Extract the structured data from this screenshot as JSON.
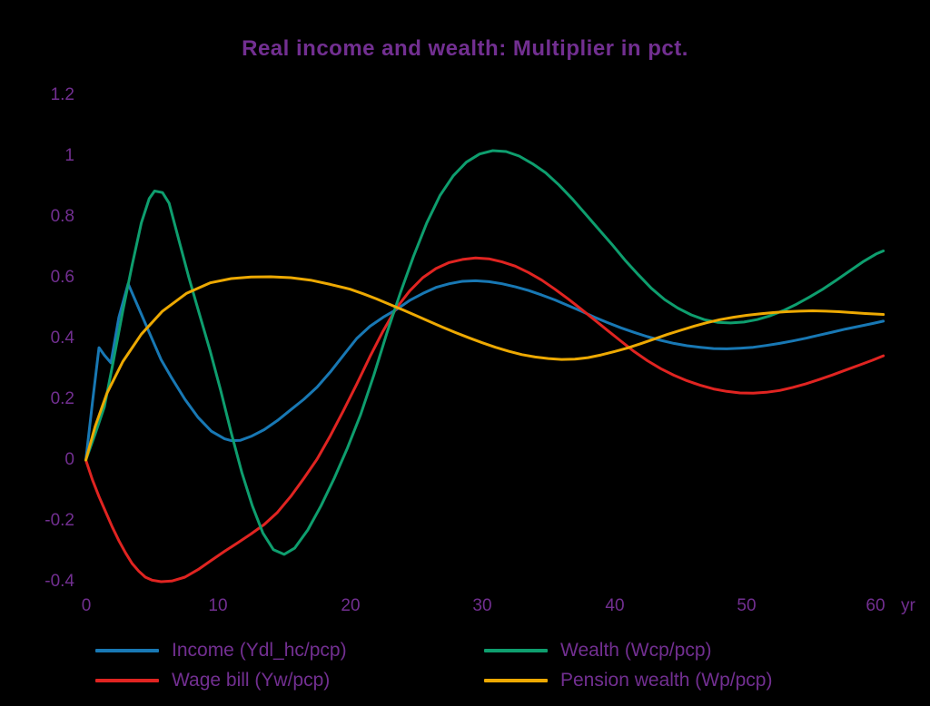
{
  "chart_data": {
    "type": "line",
    "title": "Real income and wealth: Multiplier in pct.",
    "x_unit": "yr",
    "x_range": [
      0,
      60
    ],
    "y_range": [
      -0.4,
      1.2
    ],
    "x_ticks": [
      "0",
      "10",
      "20",
      "30",
      "40",
      "50",
      "60"
    ],
    "y_ticks": [
      "1.2",
      "1",
      "0.8",
      "0.6",
      "0.4",
      "0.2",
      "0",
      "-0.2",
      "-0.4"
    ],
    "background_color": "#000000",
    "text_color": "#722f91",
    "grid": false,
    "legend_position": "bottom",
    "series": [
      {
        "id": "income",
        "label": "Income (Ydl_hc/pcp)",
        "color": "#1878b4",
        "points": [
          [
            0,
            0
          ],
          [
            0.5,
            0.19
          ],
          [
            1,
            0.37
          ],
          [
            1.4,
            0.345
          ],
          [
            1.9,
            0.32
          ],
          [
            2.5,
            0.47
          ],
          [
            3.2,
            0.58
          ],
          [
            4,
            0.5
          ],
          [
            4.8,
            0.42
          ],
          [
            5.7,
            0.33
          ],
          [
            6.5,
            0.27
          ],
          [
            7.5,
            0.2
          ],
          [
            8.5,
            0.14
          ],
          [
            9.5,
            0.095
          ],
          [
            10.5,
            0.07
          ],
          [
            11,
            0.064
          ],
          [
            11.7,
            0.065
          ],
          [
            12.5,
            0.078
          ],
          [
            13.5,
            0.1
          ],
          [
            14.5,
            0.13
          ],
          [
            15.5,
            0.165
          ],
          [
            16.5,
            0.2
          ],
          [
            17.5,
            0.24
          ],
          [
            18.5,
            0.29
          ],
          [
            19.5,
            0.345
          ],
          [
            20.5,
            0.4
          ],
          [
            21.5,
            0.44
          ],
          [
            22.5,
            0.47
          ],
          [
            23.5,
            0.495
          ],
          [
            24.5,
            0.525
          ],
          [
            25.5,
            0.548
          ],
          [
            26.5,
            0.568
          ],
          [
            27.5,
            0.58
          ],
          [
            28.5,
            0.588
          ],
          [
            29.5,
            0.59
          ],
          [
            30.5,
            0.587
          ],
          [
            31.5,
            0.58
          ],
          [
            32.5,
            0.57
          ],
          [
            33.5,
            0.558
          ],
          [
            34.5,
            0.543
          ],
          [
            35.5,
            0.527
          ],
          [
            36.5,
            0.508
          ],
          [
            37.5,
            0.49
          ],
          [
            38.5,
            0.47
          ],
          [
            39.5,
            0.452
          ],
          [
            40.5,
            0.435
          ],
          [
            41.5,
            0.42
          ],
          [
            42.5,
            0.406
          ],
          [
            43.5,
            0.394
          ],
          [
            44.5,
            0.384
          ],
          [
            45.5,
            0.376
          ],
          [
            46.5,
            0.371
          ],
          [
            47.5,
            0.367
          ],
          [
            48.5,
            0.366
          ],
          [
            49.5,
            0.368
          ],
          [
            50.5,
            0.371
          ],
          [
            51.5,
            0.377
          ],
          [
            52.5,
            0.384
          ],
          [
            53.5,
            0.392
          ],
          [
            54.5,
            0.401
          ],
          [
            55.5,
            0.411
          ],
          [
            56.5,
            0.421
          ],
          [
            57.5,
            0.431
          ],
          [
            58.5,
            0.44
          ],
          [
            59.5,
            0.449
          ],
          [
            60.35,
            0.457
          ]
        ]
      },
      {
        "id": "wage-bill",
        "label": "Wage bill (Yw/pcp)",
        "color": "#e02421",
        "points": [
          [
            0,
            0
          ],
          [
            0.5,
            -0.065
          ],
          [
            1,
            -0.12
          ],
          [
            1.5,
            -0.17
          ],
          [
            2,
            -0.22
          ],
          [
            2.5,
            -0.265
          ],
          [
            3,
            -0.305
          ],
          [
            3.5,
            -0.34
          ],
          [
            4,
            -0.365
          ],
          [
            4.5,
            -0.385
          ],
          [
            5,
            -0.395
          ],
          [
            5.7,
            -0.4
          ],
          [
            6.5,
            -0.398
          ],
          [
            7.5,
            -0.385
          ],
          [
            8.5,
            -0.36
          ],
          [
            9.5,
            -0.33
          ],
          [
            10.5,
            -0.3
          ],
          [
            11.5,
            -0.272
          ],
          [
            12.5,
            -0.243
          ],
          [
            13.5,
            -0.212
          ],
          [
            14.5,
            -0.172
          ],
          [
            15.5,
            -0.12
          ],
          [
            16.5,
            -0.06
          ],
          [
            17.5,
            0.003
          ],
          [
            18.5,
            0.08
          ],
          [
            19.5,
            0.163
          ],
          [
            20.5,
            0.25
          ],
          [
            21.5,
            0.34
          ],
          [
            22.5,
            0.425
          ],
          [
            23.5,
            0.5
          ],
          [
            24.5,
            0.556
          ],
          [
            25.5,
            0.6
          ],
          [
            26.5,
            0.63
          ],
          [
            27.5,
            0.65
          ],
          [
            28.5,
            0.66
          ],
          [
            29.5,
            0.665
          ],
          [
            30.5,
            0.662
          ],
          [
            31.5,
            0.652
          ],
          [
            32.5,
            0.638
          ],
          [
            33.5,
            0.617
          ],
          [
            34.5,
            0.592
          ],
          [
            35.5,
            0.562
          ],
          [
            36.5,
            0.53
          ],
          [
            37.5,
            0.496
          ],
          [
            38.5,
            0.461
          ],
          [
            39.5,
            0.426
          ],
          [
            40.5,
            0.391
          ],
          [
            41.5,
            0.357
          ],
          [
            42.5,
            0.327
          ],
          [
            43.5,
            0.301
          ],
          [
            44.5,
            0.279
          ],
          [
            45.5,
            0.261
          ],
          [
            46.5,
            0.246
          ],
          [
            47.5,
            0.234
          ],
          [
            48.5,
            0.226
          ],
          [
            49.5,
            0.221
          ],
          [
            50.5,
            0.22
          ],
          [
            51.5,
            0.223
          ],
          [
            52.5,
            0.229
          ],
          [
            53.5,
            0.239
          ],
          [
            54.5,
            0.251
          ],
          [
            55.5,
            0.265
          ],
          [
            56.5,
            0.28
          ],
          [
            57.5,
            0.296
          ],
          [
            58.5,
            0.312
          ],
          [
            59.5,
            0.328
          ],
          [
            60.35,
            0.343
          ]
        ]
      },
      {
        "id": "wealth",
        "label": "Wealth (Wcp/pcp)",
        "color": "#0e9e6e",
        "points": [
          [
            0,
            0
          ],
          [
            0.7,
            0.085
          ],
          [
            1.4,
            0.175
          ],
          [
            2.1,
            0.33
          ],
          [
            2.8,
            0.49
          ],
          [
            3.5,
            0.64
          ],
          [
            4.2,
            0.78
          ],
          [
            4.8,
            0.86
          ],
          [
            5.2,
            0.885
          ],
          [
            5.8,
            0.88
          ],
          [
            6.3,
            0.845
          ],
          [
            7,
            0.73
          ],
          [
            7.8,
            0.6
          ],
          [
            8.6,
            0.48
          ],
          [
            9.4,
            0.36
          ],
          [
            10.2,
            0.23
          ],
          [
            11,
            0.09
          ],
          [
            11.8,
            -0.04
          ],
          [
            12.6,
            -0.15
          ],
          [
            13.4,
            -0.24
          ],
          [
            14.2,
            -0.295
          ],
          [
            15,
            -0.31
          ],
          [
            15.8,
            -0.29
          ],
          [
            16.8,
            -0.23
          ],
          [
            17.8,
            -0.15
          ],
          [
            18.8,
            -0.06
          ],
          [
            19.8,
            0.04
          ],
          [
            20.8,
            0.15
          ],
          [
            21.8,
            0.28
          ],
          [
            22.8,
            0.42
          ],
          [
            23.8,
            0.55
          ],
          [
            24.8,
            0.67
          ],
          [
            25.8,
            0.78
          ],
          [
            26.8,
            0.87
          ],
          [
            27.8,
            0.935
          ],
          [
            28.8,
            0.98
          ],
          [
            29.8,
            1.007
          ],
          [
            30.8,
            1.018
          ],
          [
            31.8,
            1.015
          ],
          [
            32.8,
            1.0
          ],
          [
            33.8,
            0.975
          ],
          [
            34.8,
            0.945
          ],
          [
            35.8,
            0.905
          ],
          [
            36.8,
            0.86
          ],
          [
            37.8,
            0.81
          ],
          [
            38.8,
            0.76
          ],
          [
            39.8,
            0.71
          ],
          [
            40.8,
            0.658
          ],
          [
            41.8,
            0.61
          ],
          [
            42.8,
            0.565
          ],
          [
            43.8,
            0.528
          ],
          [
            44.8,
            0.5
          ],
          [
            45.8,
            0.478
          ],
          [
            46.8,
            0.462
          ],
          [
            47.8,
            0.453
          ],
          [
            48.8,
            0.451
          ],
          [
            49.8,
            0.454
          ],
          [
            50.8,
            0.462
          ],
          [
            51.8,
            0.475
          ],
          [
            52.8,
            0.492
          ],
          [
            53.8,
            0.513
          ],
          [
            54.8,
            0.537
          ],
          [
            55.8,
            0.563
          ],
          [
            56.8,
            0.592
          ],
          [
            57.8,
            0.622
          ],
          [
            58.8,
            0.652
          ],
          [
            59.8,
            0.678
          ],
          [
            60.35,
            0.688
          ]
        ]
      },
      {
        "id": "pension-wealth",
        "label": "Pension wealth (Wp/pcp)",
        "color": "#eda902",
        "points": [
          [
            0,
            0
          ],
          [
            0.7,
            0.11
          ],
          [
            1.6,
            0.22
          ],
          [
            2.8,
            0.324
          ],
          [
            4.2,
            0.414
          ],
          [
            5.8,
            0.49
          ],
          [
            7.6,
            0.548
          ],
          [
            9.4,
            0.583
          ],
          [
            11,
            0.597
          ],
          [
            12.5,
            0.602
          ],
          [
            14,
            0.603
          ],
          [
            15.5,
            0.6
          ],
          [
            17,
            0.592
          ],
          [
            18.5,
            0.578
          ],
          [
            20,
            0.562
          ],
          [
            21,
            0.547
          ],
          [
            22,
            0.53
          ],
          [
            23,
            0.512
          ],
          [
            24,
            0.494
          ],
          [
            25,
            0.475
          ],
          [
            26,
            0.456
          ],
          [
            27,
            0.437
          ],
          [
            28,
            0.419
          ],
          [
            29,
            0.402
          ],
          [
            30,
            0.386
          ],
          [
            31,
            0.371
          ],
          [
            32,
            0.358
          ],
          [
            33,
            0.347
          ],
          [
            34,
            0.339
          ],
          [
            35,
            0.334
          ],
          [
            36,
            0.331
          ],
          [
            37,
            0.332
          ],
          [
            38,
            0.337
          ],
          [
            39,
            0.346
          ],
          [
            40,
            0.357
          ],
          [
            41,
            0.369
          ],
          [
            42,
            0.383
          ],
          [
            43,
            0.398
          ],
          [
            44,
            0.413
          ],
          [
            45,
            0.427
          ],
          [
            46,
            0.44
          ],
          [
            47,
            0.452
          ],
          [
            48,
            0.462
          ],
          [
            49,
            0.47
          ],
          [
            50,
            0.476
          ],
          [
            51,
            0.481
          ],
          [
            52,
            0.485
          ],
          [
            53,
            0.488
          ],
          [
            54,
            0.49
          ],
          [
            55,
            0.491
          ],
          [
            56,
            0.49
          ],
          [
            57,
            0.488
          ],
          [
            58,
            0.485
          ],
          [
            59,
            0.482
          ],
          [
            60.35,
            0.479
          ]
        ]
      }
    ]
  }
}
